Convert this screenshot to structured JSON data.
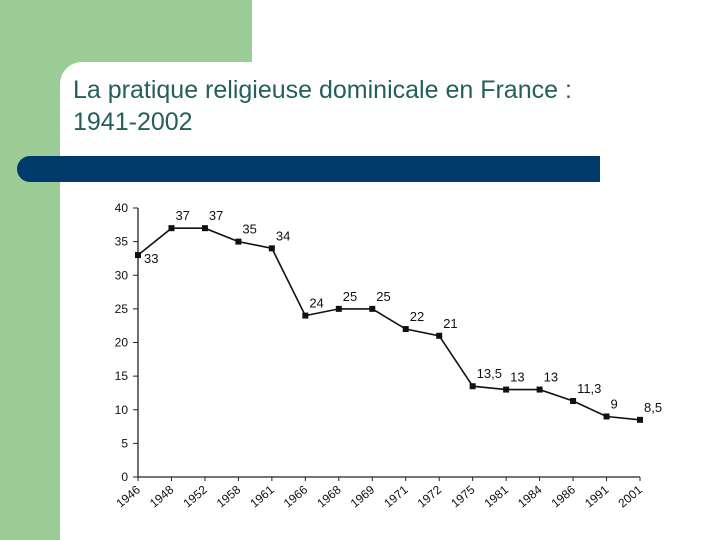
{
  "slide": {
    "title_line1": "La pratique religieuse dominicale en France :",
    "title_line2": "1941-2002",
    "colors": {
      "green": "#9ccc95",
      "title": "#245f5b",
      "bar": "#003a6a"
    }
  },
  "chart_data": {
    "type": "line",
    "title": "La pratique religieuse dominicale en France : 1941-2002",
    "xlabel": "",
    "ylabel": "",
    "ylim": [
      0,
      40
    ],
    "yticks": [
      0,
      5,
      10,
      15,
      20,
      25,
      30,
      35,
      40
    ],
    "grid": false,
    "categories": [
      "1946",
      "1948",
      "1952",
      "1958",
      "1961",
      "1966",
      "1968",
      "1969",
      "1971",
      "1972",
      "1975",
      "1981",
      "1984",
      "1986",
      "1991",
      "2001"
    ],
    "values": [
      33,
      37,
      37,
      35,
      34,
      24,
      25,
      25,
      22,
      21,
      13.5,
      13,
      13,
      11.3,
      9,
      8.5
    ],
    "labels": [
      "33",
      "37",
      "37",
      "35",
      "34",
      "24",
      "25",
      "25",
      "22",
      "21",
      "13,5",
      "13",
      "13",
      "11,3",
      "9",
      "8,5"
    ]
  }
}
